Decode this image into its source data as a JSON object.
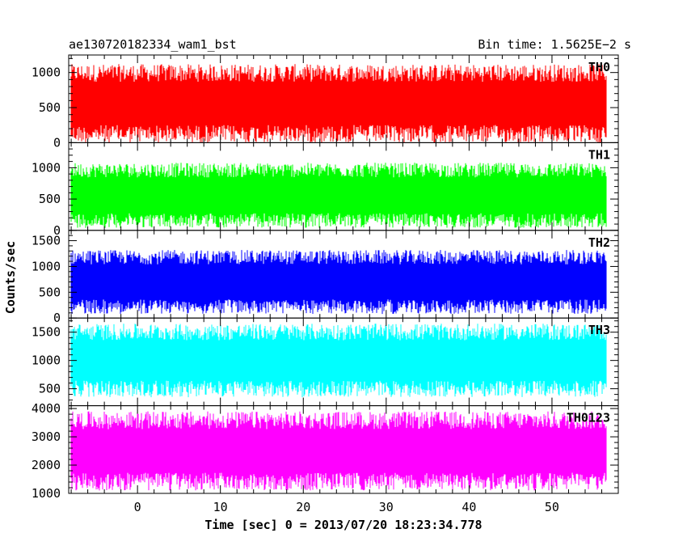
{
  "chart_data": {
    "type": "line",
    "title_left": "ae130720182334_wam1_bst",
    "title_right": "Bin time: 1.5625E−2 s",
    "xlabel": "Time [sec] 0 = 2013/07/20 18:23:34.778",
    "ylabel": "Counts/sec",
    "xlim": [
      -8.3,
      58
    ],
    "x_ticks": [
      0,
      10,
      20,
      30,
      40,
      50
    ],
    "x_tick_labels": [
      "0",
      "10",
      "20",
      "30",
      "40",
      "50"
    ],
    "data_x_range": [
      -8,
      56.5
    ],
    "grid": false,
    "panels": [
      {
        "name": "TH0",
        "color": "#ff0000",
        "ylim": [
          0,
          1250
        ],
        "y_ticks": [
          0,
          500,
          1000
        ],
        "y_tick_labels": [
          "0",
          "500",
          "1000"
        ],
        "noise_center": 560,
        "noise_halfwidth": 560
      },
      {
        "name": "TH1",
        "color": "#00ff00",
        "ylim": [
          0,
          1400
        ],
        "y_ticks": [
          0,
          500,
          1000
        ],
        "y_tick_labels": [
          "0",
          "500",
          "1000"
        ],
        "noise_center": 560,
        "noise_halfwidth": 520
      },
      {
        "name": "TH2",
        "color": "#0000ff",
        "ylim": [
          0,
          1700
        ],
        "y_ticks": [
          0,
          500,
          1000,
          1500
        ],
        "y_tick_labels": [
          "0",
          "500",
          "1000",
          "1500"
        ],
        "noise_center": 700,
        "noise_halfwidth": 620
      },
      {
        "name": "TH3",
        "color": "#00ffff",
        "ylim": [
          200,
          1750
        ],
        "y_ticks": [
          500,
          1000,
          1500
        ],
        "y_tick_labels": [
          "500",
          "1000",
          "1500"
        ],
        "noise_center": 1000,
        "noise_halfwidth": 650
      },
      {
        "name": "TH0123",
        "color": "#ff00ff",
        "ylim": [
          1000,
          4100
        ],
        "y_ticks": [
          1000,
          2000,
          3000,
          4000
        ],
        "y_tick_labels": [
          "1000",
          "2000",
          "3000",
          "4000"
        ],
        "noise_center": 2500,
        "noise_halfwidth": 1400
      }
    ]
  }
}
